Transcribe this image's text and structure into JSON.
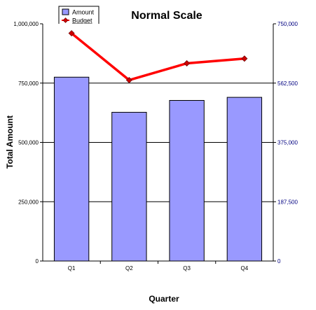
{
  "chart_data": {
    "type": "bar",
    "title": "Normal Scale",
    "xlabel": "Quarter",
    "ylabel": "Total Amount",
    "categories": [
      "Q1",
      "Q2",
      "Q3",
      "Q4"
    ],
    "series": [
      {
        "name": "Amount",
        "type": "bar",
        "axis": "left",
        "values": [
          775000,
          627000,
          677000,
          690000
        ]
      },
      {
        "name": "Budget",
        "type": "line",
        "axis": "right",
        "values": [
          720000,
          572000,
          625000,
          640000
        ]
      }
    ],
    "ylim": [
      0,
      1000000
    ],
    "y2lim": [
      0,
      750000
    ],
    "yticks": [
      "0",
      "250,000",
      "500,000",
      "750,000",
      "1,000,000"
    ],
    "y2ticks": [
      "0",
      "187,500",
      "375,000",
      "562,500",
      "750,000"
    ],
    "grid": "horizontal",
    "legend_position": "top-left",
    "colors": {
      "bar_fill": "#9999ff",
      "bar_stroke": "#000000",
      "line": "#ff0000",
      "marker": "#cc0000",
      "right_axis": "#000080"
    }
  }
}
